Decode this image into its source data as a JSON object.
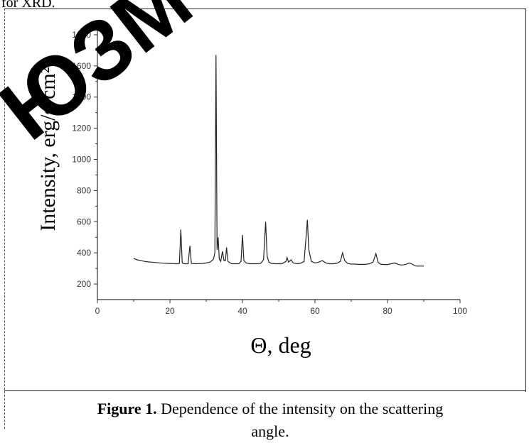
{
  "page": {
    "top_text": "for XRD.",
    "watermark": "ЮЗМ"
  },
  "caption": {
    "label": "Figure 1.",
    "text": " Dependence of the intensity on the scattering angle."
  },
  "chart_data": {
    "type": "line",
    "title": "",
    "xlabel": "Θ, deg",
    "ylabel": "Intensity, erg/s·cm²",
    "xlim": [
      0,
      100
    ],
    "ylim": [
      100,
      1850
    ],
    "x_ticks": [
      0,
      20,
      40,
      60,
      80,
      100
    ],
    "y_ticks": [
      200,
      400,
      600,
      800,
      1000,
      1200,
      1400,
      1600,
      1800
    ],
    "grid": false,
    "legend": "none",
    "series": [
      {
        "color": "#222222",
        "points": [
          [
            10,
            365
          ],
          [
            11,
            355
          ],
          [
            12,
            350
          ],
          [
            13,
            345
          ],
          [
            14,
            342
          ],
          [
            15,
            340
          ],
          [
            16,
            338
          ],
          [
            17,
            336
          ],
          [
            18,
            334
          ],
          [
            19,
            333
          ],
          [
            20,
            332
          ],
          [
            21,
            331
          ],
          [
            22,
            330
          ],
          [
            22.6,
            332
          ],
          [
            23,
            550
          ],
          [
            23.4,
            335
          ],
          [
            24,
            330
          ],
          [
            25,
            330
          ],
          [
            25.5,
            445
          ],
          [
            25.9,
            332
          ],
          [
            27,
            330
          ],
          [
            28,
            331
          ],
          [
            29,
            332
          ],
          [
            30,
            335
          ],
          [
            31,
            340
          ],
          [
            31.6,
            350
          ],
          [
            32,
            360
          ],
          [
            32.4,
            400
          ],
          [
            32.7,
            1670
          ],
          [
            33.0,
            420
          ],
          [
            33.3,
            500
          ],
          [
            33.6,
            360
          ],
          [
            34,
            345
          ],
          [
            34.5,
            410
          ],
          [
            34.9,
            350
          ],
          [
            35.3,
            350
          ],
          [
            35.6,
            435
          ],
          [
            36.0,
            345
          ],
          [
            37,
            330
          ],
          [
            38,
            330
          ],
          [
            39,
            330
          ],
          [
            39.6,
            345
          ],
          [
            40,
            515
          ],
          [
            40.4,
            350
          ],
          [
            41,
            335
          ],
          [
            42,
            330
          ],
          [
            43,
            330
          ],
          [
            44,
            330
          ],
          [
            45,
            332
          ],
          [
            45.8,
            355
          ],
          [
            46.4,
            600
          ],
          [
            46.8,
            380
          ],
          [
            47.3,
            340
          ],
          [
            48,
            332
          ],
          [
            49,
            330
          ],
          [
            50,
            330
          ],
          [
            51,
            332
          ],
          [
            52,
            345
          ],
          [
            52.3,
            370
          ],
          [
            52.7,
            340
          ],
          [
            53.4,
            355
          ],
          [
            54,
            335
          ],
          [
            55,
            330
          ],
          [
            56,
            333
          ],
          [
            57,
            345
          ],
          [
            57.6,
            520
          ],
          [
            57.9,
            612
          ],
          [
            58.3,
            420
          ],
          [
            59,
            345
          ],
          [
            60,
            335
          ],
          [
            61,
            340
          ],
          [
            62,
            350
          ],
          [
            63,
            335
          ],
          [
            64,
            330
          ],
          [
            65,
            330
          ],
          [
            66,
            333
          ],
          [
            67,
            345
          ],
          [
            67.6,
            400
          ],
          [
            68.2,
            350
          ],
          [
            69,
            332
          ],
          [
            70,
            328
          ],
          [
            71,
            328
          ],
          [
            72,
            326
          ],
          [
            73,
            326
          ],
          [
            74,
            326
          ],
          [
            75,
            330
          ],
          [
            76,
            340
          ],
          [
            76.8,
            395
          ],
          [
            77.4,
            340
          ],
          [
            78,
            328
          ],
          [
            79,
            325
          ],
          [
            80,
            325
          ],
          [
            81,
            330
          ],
          [
            82,
            335
          ],
          [
            83,
            325
          ],
          [
            84,
            322
          ],
          [
            85,
            325
          ],
          [
            86,
            335
          ],
          [
            86.8,
            328
          ],
          [
            87.5,
            318
          ],
          [
            88,
            315
          ],
          [
            89,
            315
          ],
          [
            90,
            315
          ]
        ]
      }
    ]
  }
}
